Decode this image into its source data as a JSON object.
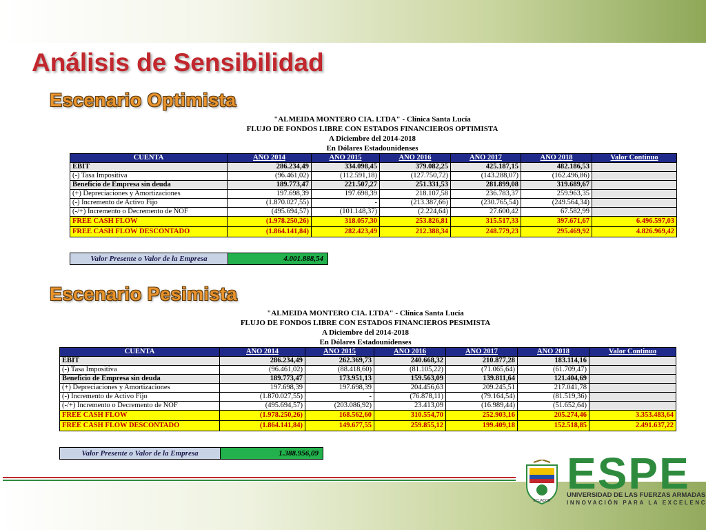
{
  "slide": {
    "title": "Análisis de Sensibilidad"
  },
  "optimista": {
    "title": "Escenario Optimista",
    "header": [
      "\"ALMEIDA MONTERO CIA. LTDA\" - Clínica Santa Lucía",
      "FLUJO DE FONDOS LIBRE CON ESTADOS FINANCIEROS OPTIMISTA",
      "A Diciembre del 2014-2018",
      "En Dólares Estadounidenses"
    ],
    "columns": [
      "CUENTA",
      "AÑO 2014",
      "AÑO 2015",
      "AÑO 2016",
      "AÑO 2017",
      "AÑO 2018",
      "Valor Continuo"
    ],
    "rows": [
      {
        "label": "EBIT",
        "values": [
          "286.234,49",
          "334.098,45",
          "379.082,25",
          "425.187,15",
          "482.186,53",
          ""
        ]
      },
      {
        "label": " (-) Tasa Impositiva",
        "values": [
          "(96.461,02)",
          "(112.591,18)",
          "(127.750,72)",
          "(143.288,07)",
          "(162.496,86)",
          ""
        ]
      },
      {
        "label": "Beneficio de Empresa sin deuda",
        "values": [
          "189.773,47",
          "221.507,27",
          "251.331,53",
          "281.899,08",
          "319.689,67",
          ""
        ]
      },
      {
        "label": " (+) Depreciaciones y Amortizaciones",
        "values": [
          "197.698,39",
          "197.698,39",
          "218.107,58",
          "236.783,37",
          "259.963,35",
          ""
        ]
      },
      {
        "label": " (-) Incremento de Activo Fijo",
        "values": [
          "(1.870.027,55)",
          "-",
          "(213.387,66)",
          "(230.765,54)",
          "(249.564,34)",
          ""
        ]
      },
      {
        "label": " (-/+) Incremento o Decremento de NOF",
        "values": [
          "(495.694,57)",
          "(101.148,37)",
          "(2.224,64)",
          "27.600,42",
          "67.582,99",
          ""
        ]
      },
      {
        "label": "FREE CASH FLOW",
        "values": [
          "(1.978.250,26)",
          "318.057,30",
          "253.826,81",
          "315.517,33",
          "397.671,67",
          "6.496.597,03"
        ]
      },
      {
        "label": "FREE CASH FLOW DESCONTADO",
        "values": [
          "(1.864.141,84)",
          "282.423,49",
          "212.388,34",
          "248.779,23",
          "295.469,92",
          "4.826.969,42"
        ]
      }
    ],
    "vp_label": "Valor Presente o Valor de la Empresa",
    "vp_value": "4.001.888,54"
  },
  "pesimista": {
    "title": "Escenario Pesimista",
    "header": [
      "\"ALMEIDA MONTERO CIA. LTDA\" - Clínica Santa Lucía",
      "FLUJO DE FONDOS LIBRE CON ESTADOS FINANCIEROS PESIMISTA",
      "A Diciembre del 2014-2018",
      "En Dólares Estadounidenses"
    ],
    "columns": [
      "CUENTA",
      "AÑO 2014",
      "AÑO 2015",
      "AÑO 2016",
      "AÑO 2017",
      "AÑO 2018",
      "Valor Continuo"
    ],
    "rows": [
      {
        "label": "EBIT",
        "values": [
          "286.234,49",
          "262.369,73",
          "240.668,32",
          "210.877,28",
          "183.114,16",
          ""
        ]
      },
      {
        "label": " (-) Tasa Impositiva",
        "values": [
          "(96.461,02)",
          "(88.418,60)",
          "(81.105,22)",
          "(71.065,64)",
          "(61.709,47)",
          ""
        ]
      },
      {
        "label": "Beneficio de Empresa sin deuda",
        "values": [
          "189.773,47",
          "173.951,13",
          "159.563,09",
          "139.811,64",
          "121.404,69",
          ""
        ]
      },
      {
        "label": " (+) Depreciaciones y Amortizaciones",
        "values": [
          "197.698,39",
          "197.698,39",
          "204.456,63",
          "209.245,51",
          "217.041,78",
          ""
        ]
      },
      {
        "label": " (-) Incremento de Activo Fijo",
        "values": [
          "(1.870.027,55)",
          "-",
          "(76.878,11)",
          "(79.164,54)",
          "(81.519,36)",
          ""
        ]
      },
      {
        "label": " (-/+) Incremento o Decremento de NOF",
        "values": [
          "(495.694,57)",
          "(203.086,92)",
          "23.413,09",
          "(16.989,44)",
          "(51.652,64)",
          ""
        ]
      },
      {
        "label": "FREE CASH FLOW",
        "values": [
          "(1.978.250,26)",
          "168.562,60",
          "310.554,70",
          "252.903,16",
          "205.274,46",
          "3.353.483,64"
        ]
      },
      {
        "label": "FREE CASH FLOW DESCONTADO",
        "values": [
          "(1.864.141,84)",
          "149.677,55",
          "259.855,12",
          "199.409,18",
          "152.518,85",
          "2.491.637,22"
        ]
      }
    ],
    "vp_label": "Valor Presente o Valor de la Empresa",
    "vp_value": "1.388.956,09"
  },
  "logo": {
    "word": "ESPE",
    "subtitle": "UNIVERSIDAD DE LAS FUERZAS ARMADAS",
    "tagline": "INNOVACIÓN PARA LA EXCELENCIA",
    "shield_text": "ECUADOR"
  },
  "colors": {
    "title_red": "#c1272d",
    "scenario_orange": "#e8932c",
    "header_navy": "#1f2a8a",
    "highlight_yellow": "#ffff00",
    "value_green": "#22b14c",
    "brand_green": "#2e8b3e"
  }
}
